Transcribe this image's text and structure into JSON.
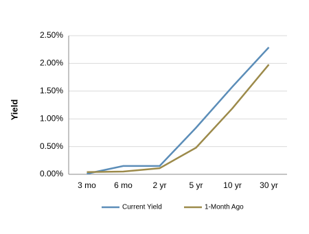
{
  "chart_data": {
    "type": "line",
    "y_label": "Yield",
    "categories": [
      "3 mo",
      "6 mo",
      "2 yr",
      "5 yr",
      "10 yr",
      "30 yr"
    ],
    "series": [
      {
        "name": "Current Yield",
        "color": "#5b8db8",
        "values": [
          0.01,
          0.15,
          0.15,
          0.84,
          1.58,
          2.29
        ]
      },
      {
        "name": "1-Month Ago",
        "color": "#9c8a4a",
        "values": [
          0.04,
          0.05,
          0.11,
          0.48,
          1.19,
          1.98
        ]
      }
    ],
    "ylim": [
      0,
      2.5
    ],
    "yticks": [
      {
        "value": 0,
        "label": "0.00%"
      },
      {
        "value": 0.5,
        "label": "0.50%"
      },
      {
        "value": 1,
        "label": "1.00%"
      },
      {
        "value": 1.5,
        "label": "1.50%"
      },
      {
        "value": 2,
        "label": "2.00%"
      },
      {
        "value": 2.5,
        "label": "2.50%"
      }
    ],
    "grid": true,
    "legend": "bottom"
  }
}
